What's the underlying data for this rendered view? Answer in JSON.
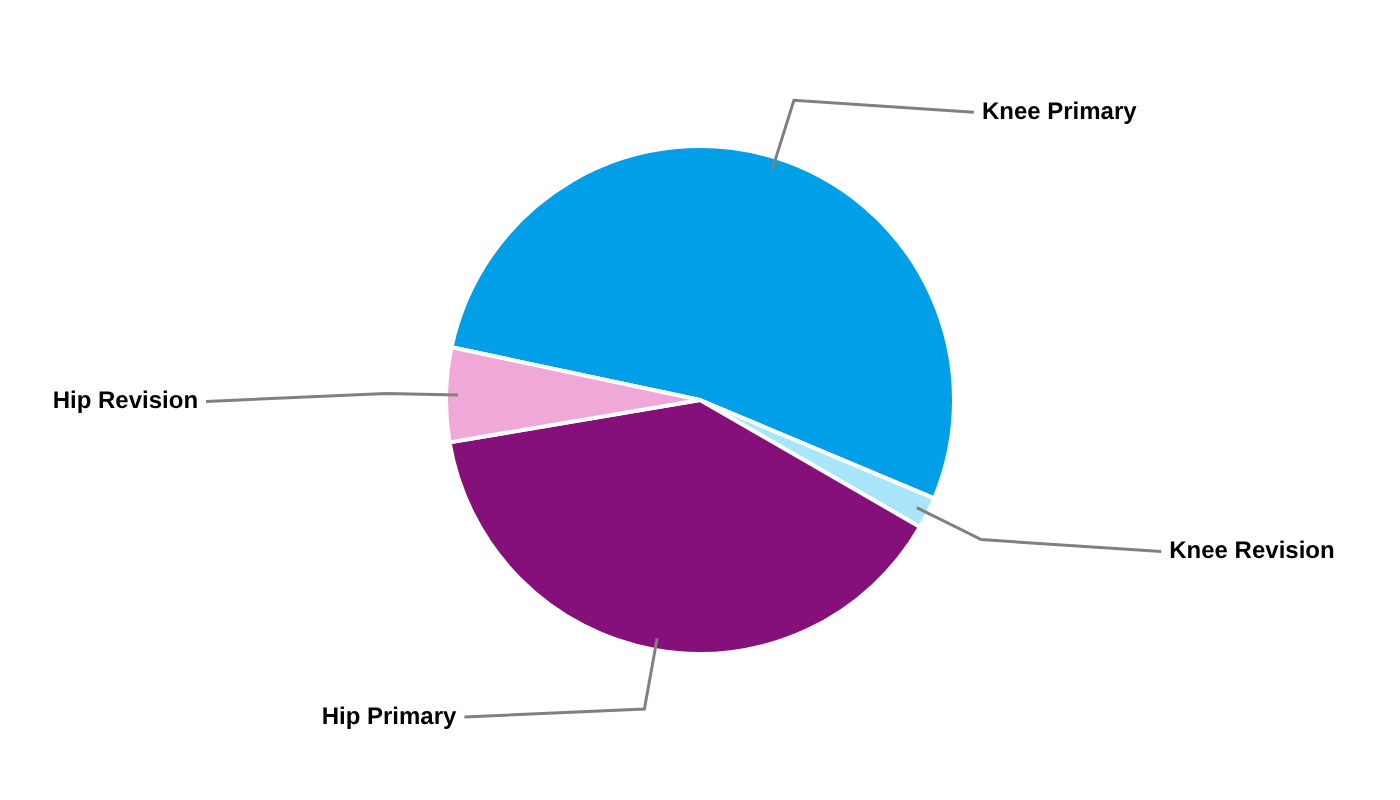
{
  "chart_data": {
    "type": "pie",
    "categories": [
      "Knee Primary",
      "Knee Revision",
      "Hip Primary",
      "Hip Revision"
    ],
    "values": [
      53,
      2,
      39,
      6
    ],
    "colors": [
      "#009fe8",
      "#a9e5fb",
      "#86107a",
      "#f0a8d8"
    ],
    "legend": false
  }
}
